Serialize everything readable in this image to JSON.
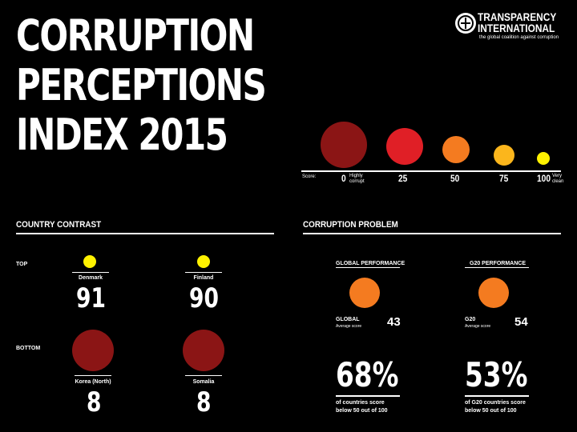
{
  "title": {
    "line1": "CORRUPTION",
    "line2": "PERCEPTIONS",
    "line3": "INDEX 2015"
  },
  "logo": {
    "line1": "TRANSPARENCY",
    "line2": "INTERNATIONAL",
    "tagline": "the global coalition against corruption"
  },
  "scale": {
    "label": "Score:",
    "ticks": [
      "0",
      "25",
      "50",
      "75",
      "100"
    ],
    "low_note_1": "Highly",
    "low_note_2": "corrupt",
    "high_note_1": "Very",
    "high_note_2": "clean"
  },
  "colors": {
    "c0": "#8b1515",
    "c25": "#e01f26",
    "c50": "#f47b20",
    "c75": "#fbb61c",
    "c100": "#fff200"
  },
  "contrast": {
    "heading": "COUNTRY CONTRAST",
    "top_label": "TOP",
    "bottom_label": "BOTTOM",
    "countries": [
      {
        "name": "Denmark",
        "score": "91"
      },
      {
        "name": "Finland",
        "score": "90"
      },
      {
        "name": "Korea (North)",
        "score": "8"
      },
      {
        "name": "Somalia",
        "score": "8"
      }
    ]
  },
  "problem": {
    "heading": "CORRUPTION PROBLEM",
    "global_heading": "GLOBAL PERFORMANCE",
    "g20_heading": "G20 PERFORMANCE",
    "global_label": "GLOBAL",
    "global_sub": "Average score",
    "global_score": "43",
    "g20_label": "G20",
    "g20_sub": "Average score",
    "g20_score": "54",
    "pct1": "68%",
    "pct1_l1": "of countries score",
    "pct1_l2": "below 50 out of 100",
    "pct2": "53%",
    "pct2_l1": "of G20 countries score",
    "pct2_l2": "below 50 out of 100"
  }
}
